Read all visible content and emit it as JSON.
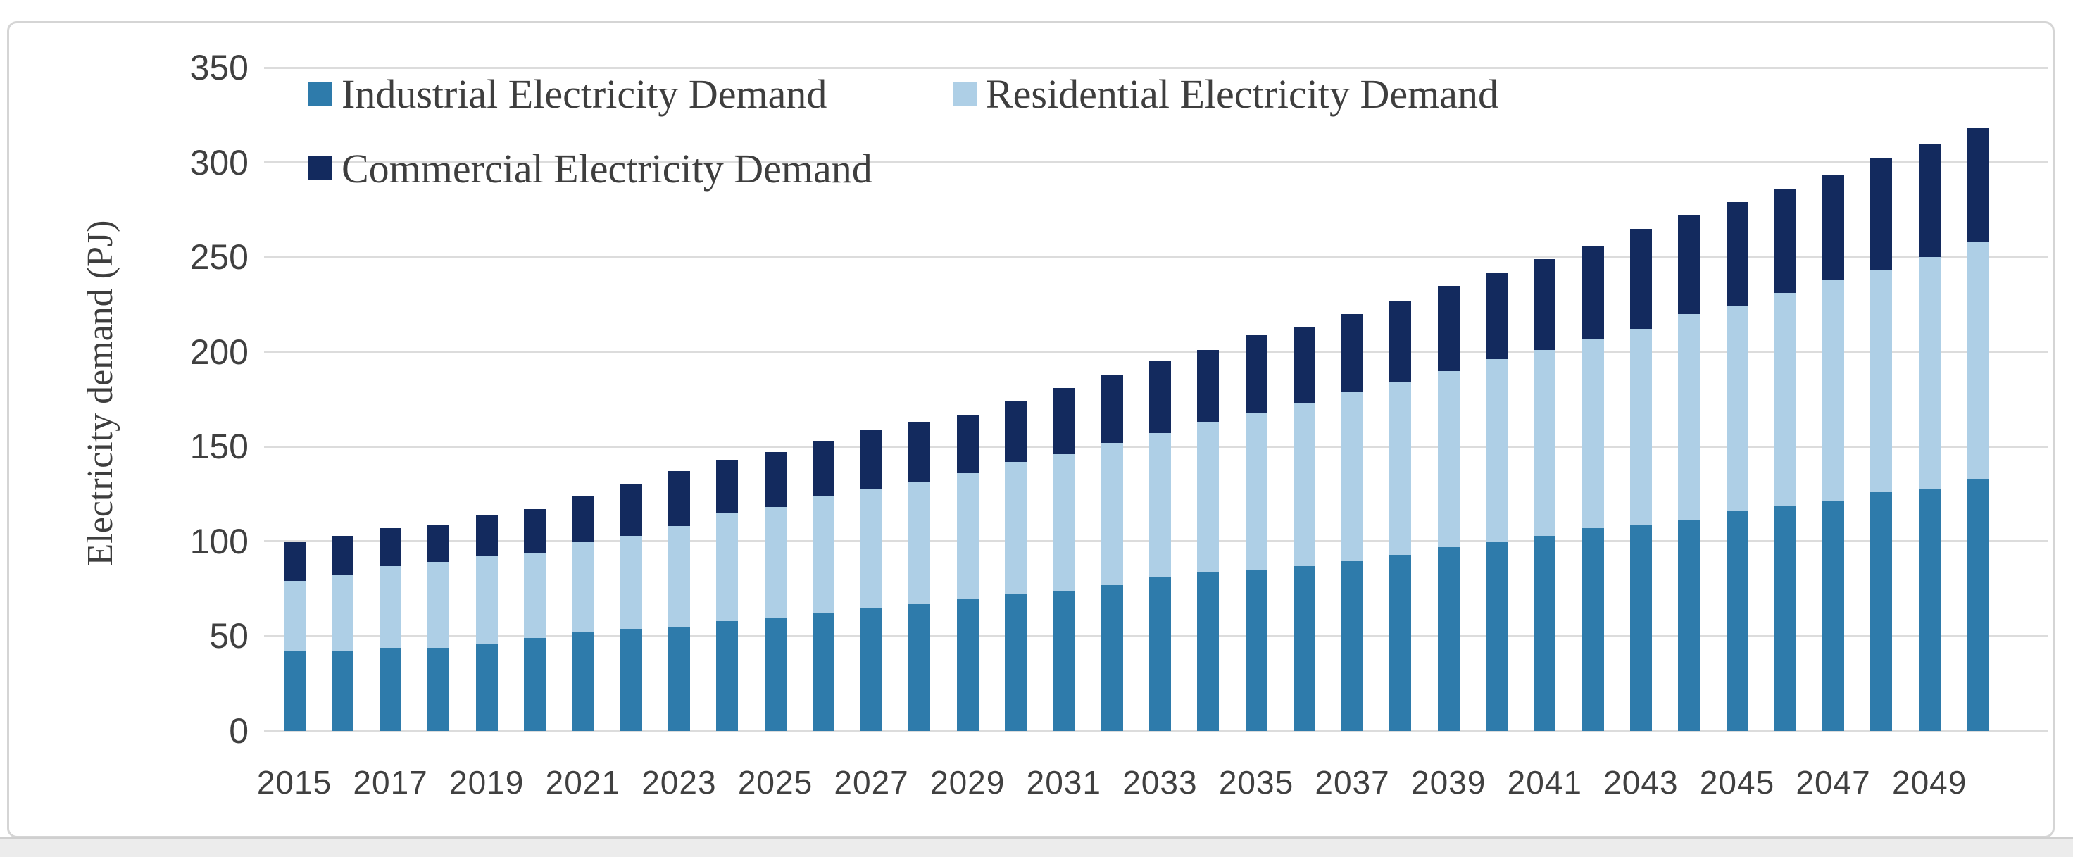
{
  "figure": {
    "y_axis_title": "Electricity demand (PJ)"
  },
  "legend": {
    "items": [
      {
        "label": "Industrial Electricity Demand",
        "color": "#2e7bab"
      },
      {
        "label": "Residential Electricity Demand",
        "color": "#aecfe6"
      },
      {
        "label": "Commercial Electricity Demand",
        "color": "#132a5e"
      }
    ]
  },
  "colors": {
    "industrial": "#2e7bab",
    "residential": "#aecfe6",
    "commercial": "#132a5e",
    "gridline": "#dcdcdc",
    "axis_text": "#404040",
    "legend_text": "#3e3e3e"
  },
  "chart_data": {
    "type": "bar",
    "stacked": true,
    "title": "",
    "xlabel": "",
    "ylabel": "Electricity demand (PJ)",
    "ylim": [
      0,
      350
    ],
    "yticks": [
      0,
      50,
      100,
      150,
      200,
      250,
      300,
      350
    ],
    "grid": "horizontal",
    "legend_position": "top-left-inside",
    "x": [
      2015,
      2016,
      2017,
      2018,
      2019,
      2020,
      2021,
      2022,
      2023,
      2024,
      2025,
      2026,
      2027,
      2028,
      2029,
      2030,
      2031,
      2032,
      2033,
      2034,
      2035,
      2036,
      2037,
      2038,
      2039,
      2040,
      2041,
      2042,
      2043,
      2044,
      2045,
      2046,
      2047,
      2048,
      2049,
      2050
    ],
    "x_tick_labels": [
      "2015",
      "2017",
      "2019",
      "2021",
      "2023",
      "2025",
      "2027",
      "2029",
      "2031",
      "2033",
      "2035",
      "2037",
      "2039",
      "2041",
      "2043",
      "2045",
      "2047",
      "2049"
    ],
    "series": [
      {
        "name": "Industrial Electricity Demand",
        "color": "#2e7bab",
        "values": [
          42,
          42,
          44,
          44,
          46,
          49,
          52,
          54,
          55,
          58,
          60,
          62,
          65,
          67,
          70,
          72,
          74,
          77,
          81,
          84,
          85,
          87,
          90,
          93,
          97,
          100,
          103,
          107,
          109,
          111,
          116,
          119,
          121,
          126,
          128,
          133
        ]
      },
      {
        "name": "Residential Electricity Demand",
        "color": "#aecfe6",
        "values": [
          37,
          40,
          43,
          45,
          46,
          45,
          48,
          49,
          53,
          57,
          58,
          62,
          63,
          64,
          66,
          70,
          72,
          75,
          76,
          79,
          83,
          86,
          89,
          91,
          93,
          96,
          98,
          100,
          103,
          109,
          108,
          112,
          117,
          117,
          122,
          125
        ]
      },
      {
        "name": "Commercial Electricity Demand",
        "color": "#132a5e",
        "values": [
          21,
          21,
          20,
          20,
          22,
          23,
          24,
          27,
          29,
          28,
          29,
          29,
          31,
          32,
          31,
          32,
          35,
          36,
          38,
          38,
          41,
          40,
          41,
          43,
          45,
          46,
          48,
          49,
          53,
          52,
          55,
          55,
          55,
          59,
          60,
          60
        ]
      }
    ]
  }
}
